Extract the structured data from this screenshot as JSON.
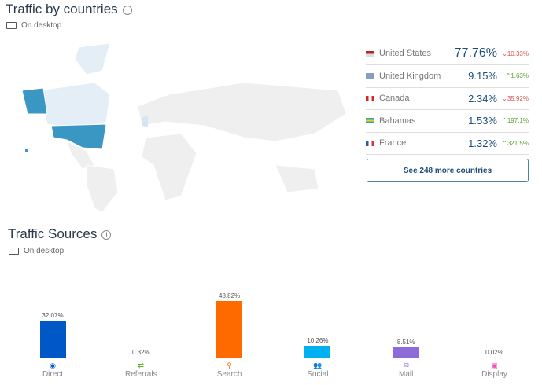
{
  "countries": {
    "title": "Traffic by countries",
    "device": "On desktop",
    "more_button": "See 248 more countries",
    "rows": [
      {
        "name": "United States",
        "share": "77.76%",
        "change": "10.33%",
        "dir": "down",
        "flag": "us-flag"
      },
      {
        "name": "United Kingdom",
        "share": "9.15%",
        "change": "1.63%",
        "dir": "up",
        "flag": "uk-flag"
      },
      {
        "name": "Canada",
        "share": "2.34%",
        "change": "35.92%",
        "dir": "down",
        "flag": "ca-flag"
      },
      {
        "name": "Bahamas",
        "share": "1.53%",
        "change": "197.1%",
        "dir": "up",
        "flag": "bs-flag"
      },
      {
        "name": "France",
        "share": "1.32%",
        "change": "321.5%",
        "dir": "up",
        "flag": "fr-flag"
      }
    ]
  },
  "sources": {
    "title": "Traffic Sources",
    "device": "On desktop"
  },
  "chart_data": {
    "type": "bar",
    "categories": [
      "Direct",
      "Referrals",
      "Search",
      "Social",
      "Mail",
      "Display"
    ],
    "values": [
      32.07,
      0.32,
      48.82,
      10.26,
      8.51,
      0.02
    ],
    "labels": [
      "32.07%",
      "0.32%",
      "48.82%",
      "10.26%",
      "8.51%",
      "0.02%"
    ],
    "colors": [
      "#0058c7",
      "#5ab82e",
      "#ff6a00",
      "#00b0ef",
      "#8e6bd8",
      "#f04fb8"
    ],
    "icons": [
      "direct-icon",
      "referrals-icon",
      "search-icon",
      "social-icon",
      "mail-icon",
      "display-icon"
    ],
    "ylim": [
      0,
      50
    ]
  }
}
